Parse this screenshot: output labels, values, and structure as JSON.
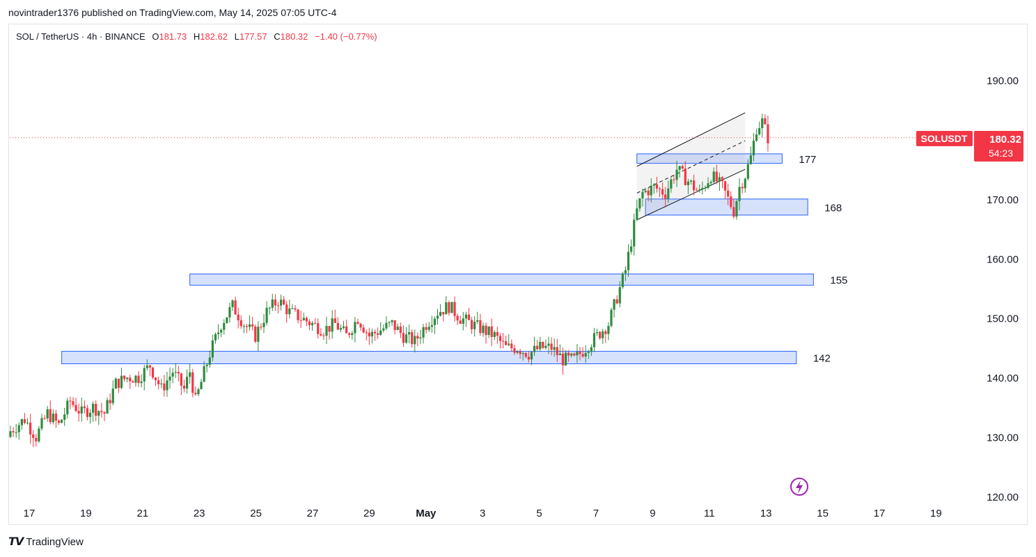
{
  "header": {
    "publish_line": "novintrader1376 published on TradingView.com, May 14, 2025 07:05 UTC-4"
  },
  "symbol_bar": {
    "title": "SOL / TetherUS · 4h · BINANCE",
    "o_label": "O",
    "o_value": "181.73",
    "h_label": "H",
    "h_value": "182.62",
    "l_label": "L",
    "l_value": "177.57",
    "c_label": "C",
    "c_value": "180.32",
    "change": "−1.40 (−0.77%)"
  },
  "price_badge": {
    "symbol": "SOLUSDT",
    "price": "180.32",
    "countdown": "54:23"
  },
  "footer": {
    "brand": "TradingView"
  },
  "colors": {
    "up": "#22ab94",
    "up_body": "#2e8b3e",
    "down": "#f23645",
    "zone_fill": "#cfdcfb",
    "zone_border": "#2962ff",
    "price_line": "#f23645"
  },
  "chart_data": {
    "type": "candlestick",
    "title": "SOL / TetherUS · 4h · BINANCE",
    "ylim": [
      120,
      194
    ],
    "y_ticks": [
      {
        "value": 190,
        "label": "190.00"
      },
      {
        "value": 180,
        "label": "180.00"
      },
      {
        "value": 170,
        "label": "170.00"
      },
      {
        "value": 160,
        "label": "160.00"
      },
      {
        "value": 150,
        "label": "150.00"
      },
      {
        "value": 140,
        "label": "140.00"
      },
      {
        "value": 130,
        "label": "130.00"
      },
      {
        "value": 120,
        "label": "120.00"
      }
    ],
    "x_ticks": [
      "17",
      "19",
      "21",
      "23",
      "25",
      "27",
      "29",
      "May",
      "3",
      "5",
      "7",
      "9",
      "11",
      "13",
      "15",
      "17",
      "19"
    ],
    "last_price": 180.32,
    "candle_anchors": [
      [
        0,
        131
      ],
      [
        5,
        133
      ],
      [
        9,
        130
      ],
      [
        13,
        134
      ],
      [
        17,
        132
      ],
      [
        21,
        136
      ],
      [
        25,
        134
      ],
      [
        29,
        135
      ],
      [
        33,
        134
      ],
      [
        37,
        139
      ],
      [
        41,
        140
      ],
      [
        45,
        140
      ],
      [
        49,
        142
      ],
      [
        53,
        138
      ],
      [
        57,
        141
      ],
      [
        61,
        138
      ],
      [
        63,
        141
      ],
      [
        65,
        136
      ],
      [
        70,
        144
      ],
      [
        74,
        149
      ],
      [
        78,
        152
      ],
      [
        82,
        149
      ],
      [
        86,
        147
      ],
      [
        90,
        151
      ],
      [
        94,
        153
      ],
      [
        98,
        151
      ],
      [
        102,
        150
      ],
      [
        106,
        149
      ],
      [
        110,
        148
      ],
      [
        114,
        149
      ],
      [
        118,
        147
      ],
      [
        122,
        150
      ],
      [
        126,
        147
      ],
      [
        130,
        148
      ],
      [
        134,
        149
      ],
      [
        138,
        147
      ],
      [
        142,
        146
      ],
      [
        146,
        149
      ],
      [
        150,
        151
      ],
      [
        154,
        152
      ],
      [
        158,
        150
      ],
      [
        162,
        149
      ],
      [
        166,
        148
      ],
      [
        170,
        147
      ],
      [
        174,
        145
      ],
      [
        178,
        145
      ],
      [
        182,
        144
      ],
      [
        186,
        145
      ],
      [
        190,
        145
      ],
      [
        194,
        143
      ],
      [
        198,
        143
      ],
      [
        202,
        145
      ],
      [
        206,
        147
      ],
      [
        210,
        149
      ],
      [
        214,
        155
      ],
      [
        216,
        158
      ],
      [
        218,
        163
      ],
      [
        220,
        168
      ],
      [
        222,
        171
      ],
      [
        226,
        172
      ],
      [
        230,
        171
      ],
      [
        234,
        175
      ],
      [
        238,
        173
      ],
      [
        242,
        171
      ],
      [
        246,
        174
      ],
      [
        250,
        172
      ],
      [
        252,
        170
      ],
      [
        254,
        168
      ],
      [
        256,
        172
      ],
      [
        258,
        174
      ],
      [
        260,
        177
      ],
      [
        262,
        182
      ],
      [
        264,
        183
      ],
      [
        266,
        180.32
      ]
    ],
    "zones": [
      {
        "label": "177",
        "low": 176.0,
        "high": 177.6,
        "start": 220,
        "end": 271
      },
      {
        "label": "168",
        "low": 167.3,
        "high": 170.0,
        "start": 223,
        "end": 280
      },
      {
        "label": "155",
        "low": 155.5,
        "high": 157.4,
        "start": 63,
        "end": 282
      },
      {
        "label": "142",
        "low": 142.3,
        "high": 144.4,
        "start": 18,
        "end": 276
      }
    ],
    "channel": {
      "upper": [
        [
          220,
          175.5
        ],
        [
          258,
          184.5
        ]
      ],
      "lower": [
        [
          220,
          166.5
        ],
        [
          258,
          175.0
        ]
      ],
      "mid": [
        [
          220,
          171.0
        ],
        [
          258,
          179.8
        ]
      ]
    }
  }
}
